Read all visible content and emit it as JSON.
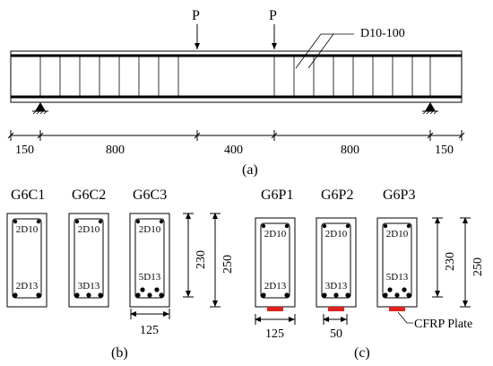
{
  "beam": {
    "load_labels": [
      "P",
      "P"
    ],
    "stirrup_label": "D10-100",
    "dims": [
      "150",
      "800",
      "400",
      "800",
      "150"
    ],
    "caption": "(a)"
  },
  "groupB": {
    "titles": [
      "G6C1",
      "G6C2",
      "G6C3"
    ],
    "top_rebar": [
      "2D10",
      "2D10",
      "2D10"
    ],
    "bottom_rebar": [
      "2D13",
      "3D13",
      "5D13"
    ],
    "dim_230": "230",
    "dim_250": "250",
    "dim_125": "125",
    "caption": "(b)"
  },
  "groupC": {
    "titles": [
      "G6P1",
      "G6P2",
      "G6P3"
    ],
    "top_rebar": [
      "2D10",
      "2D10",
      "2D10"
    ],
    "bottom_rebar": [
      "2D13",
      "3D13",
      "5D13"
    ],
    "dim_230": "230",
    "dim_250": "250",
    "dim_125": "125",
    "dim_50": "50",
    "plate_label": "CFRP Plate",
    "plate_color": "#e0221c",
    "caption": "(c)"
  }
}
